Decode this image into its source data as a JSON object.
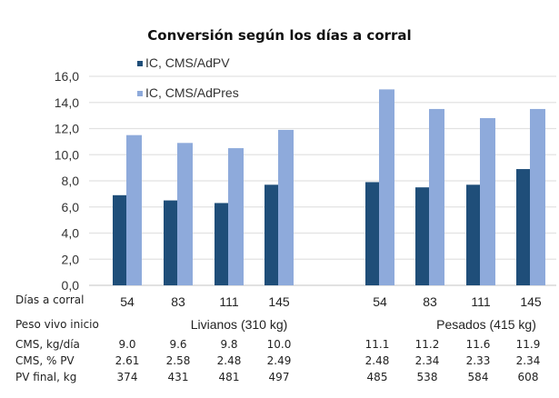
{
  "chart_data": {
    "type": "bar",
    "title": "Conversión según los días a corral",
    "xlabel": "Días a corral",
    "ylabel": "",
    "ylim": [
      0,
      16
    ],
    "yticks": [
      "0,0",
      "2,0",
      "4,0",
      "6,0",
      "8,0",
      "10,0",
      "12,0",
      "14,0",
      "16,0"
    ],
    "grid": true,
    "legend_position": "top-left",
    "groups": [
      {
        "name": "Livianos (310 kg)",
        "categories": [
          "54",
          "83",
          "111",
          "145"
        ]
      },
      {
        "name": "Pesados (415 kg)",
        "categories": [
          "54",
          "83",
          "111",
          "145"
        ]
      }
    ],
    "categories": [
      "54",
      "83",
      "111",
      "145",
      "54",
      "83",
      "111",
      "145"
    ],
    "series": [
      {
        "name": "IC, CMS/AdPV",
        "color": "#1f4e79",
        "values": [
          6.9,
          6.5,
          6.3,
          7.7,
          7.9,
          7.5,
          7.7,
          8.9
        ]
      },
      {
        "name": "IC, CMS/AdPres",
        "color": "#8eaadb",
        "values": [
          11.5,
          10.9,
          10.5,
          11.9,
          15.0,
          13.5,
          12.8,
          13.5
        ]
      }
    ]
  },
  "table": {
    "row_labels": {
      "days": "Días a corral",
      "weight": "Peso vivo inicio",
      "cms_day": "CMS, kg/día",
      "cms_pv": "CMS, % PV",
      "pv_final": "PV final, kg"
    },
    "group_labels": [
      "Livianos (310 kg)",
      "Pesados (415 kg)"
    ],
    "cms_day": [
      "9.0",
      "9.6",
      "9.8",
      "10.0",
      "11.1",
      "11.2",
      "11.6",
      "11.9"
    ],
    "cms_pv": [
      "2.61",
      "2.58",
      "2.48",
      "2.49",
      "2.48",
      "2.34",
      "2.33",
      "2.34"
    ],
    "pv_final": [
      "374",
      "431",
      "481",
      "497",
      "485",
      "538",
      "584",
      "608"
    ]
  }
}
